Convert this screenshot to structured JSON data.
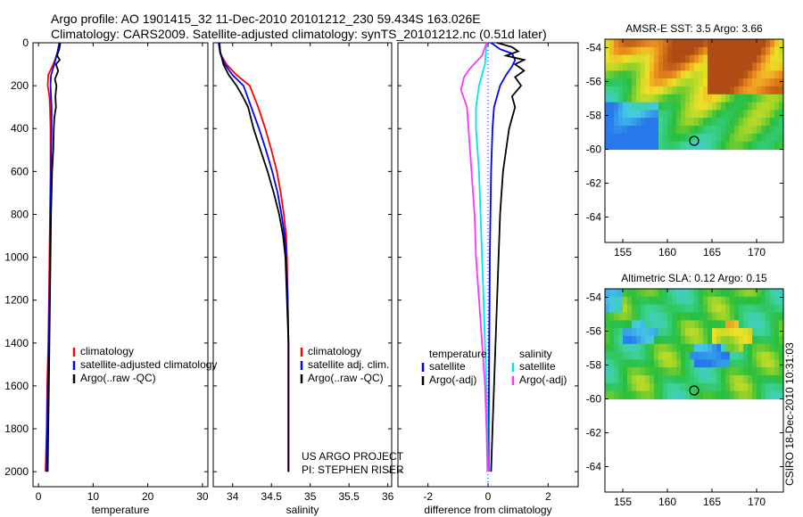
{
  "header": {
    "line1": "Argo profile: AO 1901415_32 11-Dec-2010 20101212_230 59.434S 163.026E",
    "line2": "Climatology: CARS2009. Satellite-adjusted climatology: synTS_20101212.nc (0.51d later)"
  },
  "credit": "CSIRO 18-Dec-2010 10:31:03",
  "project_note": [
    "US ARGO PROJECT",
    "PI: STEPHEN RISER"
  ],
  "colors": {
    "climatology": "#ff0000",
    "satellite": "#0000ff",
    "argo": "#000000",
    "sal_satellite": "#00e5e5",
    "sal_argo": "#ff33ff",
    "zero_line": "#0000ff"
  },
  "chart_data": [
    {
      "type": "line",
      "xlabel": "temperature",
      "ylabel": "",
      "xlim": [
        -1,
        31
      ],
      "ylim": [
        2070,
        0
      ],
      "xticks": [
        0,
        10,
        20,
        30
      ],
      "yticks": [
        0,
        200,
        400,
        600,
        800,
        1000,
        1200,
        1400,
        1600,
        1800,
        2000
      ],
      "legend": [
        "climatology",
        "satellite-adjusted climatology",
        "Argo(..raw -QC)"
      ],
      "legend_position": "bottom-right",
      "series": [
        {
          "name": "climatology",
          "color": "#ff0000",
          "points": [
            [
              3.9,
              0
            ],
            [
              3.6,
              40
            ],
            [
              2.7,
              100
            ],
            [
              1.8,
              150
            ],
            [
              1.7,
              200
            ],
            [
              2.0,
              250
            ],
            [
              2.1,
              300
            ],
            [
              2.2,
              400
            ],
            [
              2.2,
              600
            ],
            [
              2.1,
              800
            ],
            [
              2.0,
              1000
            ],
            [
              1.9,
              1200
            ],
            [
              1.8,
              1400
            ],
            [
              1.6,
              1600
            ],
            [
              1.5,
              1800
            ],
            [
              1.3,
              2000
            ]
          ]
        },
        {
          "name": "satellite-adjusted climatology",
          "color": "#0000ff",
          "points": [
            [
              3.8,
              0
            ],
            [
              3.5,
              40
            ],
            [
              2.9,
              100
            ],
            [
              2.3,
              150
            ],
            [
              2.2,
              200
            ],
            [
              2.3,
              250
            ],
            [
              2.4,
              300
            ],
            [
              2.4,
              400
            ],
            [
              2.3,
              600
            ],
            [
              2.2,
              800
            ],
            [
              2.1,
              1000
            ],
            [
              2.0,
              1200
            ],
            [
              1.9,
              1400
            ],
            [
              1.7,
              1600
            ],
            [
              1.6,
              1800
            ],
            [
              1.4,
              2000
            ]
          ]
        },
        {
          "name": "Argo(..raw -QC)",
          "color": "#000000",
          "points": [
            [
              4.0,
              0
            ],
            [
              3.8,
              30
            ],
            [
              3.4,
              60
            ],
            [
              3.9,
              80
            ],
            [
              3.2,
              100
            ],
            [
              3.6,
              130
            ],
            [
              3.0,
              170
            ],
            [
              3.3,
              200
            ],
            [
              3.1,
              250
            ],
            [
              3.2,
              300
            ],
            [
              2.9,
              350
            ],
            [
              2.8,
              400
            ],
            [
              2.7,
              500
            ],
            [
              2.5,
              600
            ],
            [
              2.4,
              700
            ],
            [
              2.3,
              800
            ],
            [
              2.2,
              1000
            ],
            [
              2.1,
              1200
            ],
            [
              2.0,
              1400
            ],
            [
              1.9,
              1600
            ],
            [
              1.8,
              1800
            ],
            [
              1.7,
              2000
            ]
          ]
        }
      ]
    },
    {
      "type": "line",
      "xlabel": "salinity",
      "ylabel": "",
      "xlim": [
        33.75,
        36.05
      ],
      "ylim": [
        2070,
        0
      ],
      "xticks": [
        34,
        34.5,
        35,
        35.5,
        36
      ],
      "legend": [
        "climatology",
        "satellite adj. clim.",
        "Argo(..raw -QC)"
      ],
      "legend_position": "bottom-right",
      "series": [
        {
          "name": "climatology",
          "color": "#ff0000",
          "points": [
            [
              33.82,
              0
            ],
            [
              33.84,
              50
            ],
            [
              33.92,
              100
            ],
            [
              34.05,
              150
            ],
            [
              34.22,
              200
            ],
            [
              34.33,
              300
            ],
            [
              34.42,
              400
            ],
            [
              34.5,
              500
            ],
            [
              34.57,
              600
            ],
            [
              34.62,
              700
            ],
            [
              34.66,
              800
            ],
            [
              34.69,
              900
            ],
            [
              34.7,
              1000
            ],
            [
              34.71,
              1200
            ],
            [
              34.72,
              1400
            ],
            [
              34.72,
              1600
            ],
            [
              34.72,
              2000
            ]
          ]
        },
        {
          "name": "satellite adj. clim.",
          "color": "#0000ff",
          "points": [
            [
              33.82,
              0
            ],
            [
              33.84,
              50
            ],
            [
              33.9,
              100
            ],
            [
              34.0,
              150
            ],
            [
              34.14,
              200
            ],
            [
              34.24,
              300
            ],
            [
              34.34,
              400
            ],
            [
              34.43,
              500
            ],
            [
              34.51,
              600
            ],
            [
              34.58,
              700
            ],
            [
              34.63,
              800
            ],
            [
              34.67,
              900
            ],
            [
              34.69,
              1000
            ],
            [
              34.71,
              1200
            ],
            [
              34.72,
              1400
            ],
            [
              34.72,
              1600
            ],
            [
              34.72,
              2000
            ]
          ]
        },
        {
          "name": "Argo(..raw -QC)",
          "color": "#000000",
          "points": [
            [
              33.83,
              0
            ],
            [
              33.84,
              40
            ],
            [
              33.88,
              100
            ],
            [
              33.95,
              150
            ],
            [
              34.05,
              200
            ],
            [
              34.13,
              250
            ],
            [
              34.2,
              300
            ],
            [
              34.27,
              400
            ],
            [
              34.36,
              500
            ],
            [
              34.45,
              600
            ],
            [
              34.53,
              700
            ],
            [
              34.6,
              800
            ],
            [
              34.65,
              900
            ],
            [
              34.68,
              1000
            ],
            [
              34.7,
              1200
            ],
            [
              34.72,
              1400
            ],
            [
              34.72,
              1600
            ],
            [
              34.72,
              2000
            ]
          ]
        }
      ]
    },
    {
      "type": "line",
      "xlabel": "difference from climatology",
      "ylabel": "",
      "xlim": [
        -3,
        3
      ],
      "ylim": [
        2070,
        0
      ],
      "xticks": [
        -2,
        0,
        2
      ],
      "legend_left_title": "temperature",
      "legend_right_title": "salinity",
      "legend_left": [
        "satellite",
        "Argo(-adj)"
      ],
      "legend_right": [
        "satellite",
        "Argo(-adj)"
      ],
      "legend_position": "bottom",
      "series": [
        {
          "name": "satellite",
          "color": "#0000ff",
          "points": [
            [
              0.1,
              0
            ],
            [
              0.4,
              30
            ],
            [
              0.8,
              50
            ],
            [
              0.9,
              80
            ],
            [
              0.8,
              110
            ],
            [
              0.6,
              150
            ],
            [
              0.4,
              200
            ],
            [
              0.3,
              250
            ],
            [
              0.2,
              300
            ],
            [
              0.15,
              400
            ],
            [
              0.1,
              600
            ],
            [
              0.08,
              800
            ],
            [
              0.06,
              1000
            ],
            [
              0.05,
              1200
            ],
            [
              0.04,
              1400
            ],
            [
              0.03,
              1600
            ],
            [
              0.02,
              1800
            ],
            [
              0.02,
              2000
            ]
          ]
        },
        {
          "name": "Argo(-adj)",
          "color": "#000000",
          "points": [
            [
              0.3,
              0
            ],
            [
              0.8,
              20
            ],
            [
              1.0,
              40
            ],
            [
              0.6,
              60
            ],
            [
              1.2,
              80
            ],
            [
              0.9,
              100
            ],
            [
              1.2,
              130
            ],
            [
              0.9,
              160
            ],
            [
              1.1,
              200
            ],
            [
              0.8,
              250
            ],
            [
              0.9,
              300
            ],
            [
              0.7,
              400
            ],
            [
              0.6,
              500
            ],
            [
              0.5,
              600
            ],
            [
              0.45,
              700
            ],
            [
              0.4,
              800
            ],
            [
              0.35,
              1000
            ],
            [
              0.3,
              1200
            ],
            [
              0.25,
              1400
            ],
            [
              0.2,
              1600
            ],
            [
              0.15,
              1800
            ],
            [
              0.1,
              2000
            ]
          ]
        },
        {
          "name": "salinity satellite",
          "color": "#00e5e5",
          "points": [
            [
              -0.05,
              0
            ],
            [
              -0.1,
              100
            ],
            [
              -0.3,
              200
            ],
            [
              -0.4,
              300
            ],
            [
              -0.4,
              400
            ],
            [
              -0.35,
              500
            ],
            [
              -0.3,
              600
            ],
            [
              -0.25,
              800
            ],
            [
              -0.2,
              1000
            ],
            [
              -0.15,
              1200
            ],
            [
              -0.1,
              1400
            ],
            [
              -0.05,
              1600
            ],
            [
              -0.02,
              1800
            ],
            [
              0.0,
              2000
            ]
          ]
        },
        {
          "name": "salinity Argo(-adj)",
          "color": "#ff33ff",
          "points": [
            [
              -0.05,
              0
            ],
            [
              -0.2,
              60
            ],
            [
              -0.6,
              120
            ],
            [
              -0.8,
              160
            ],
            [
              -0.9,
              220
            ],
            [
              -0.7,
              300
            ],
            [
              -0.65,
              400
            ],
            [
              -0.6,
              500
            ],
            [
              -0.55,
              600
            ],
            [
              -0.5,
              700
            ],
            [
              -0.45,
              800
            ],
            [
              -0.4,
              1000
            ],
            [
              -0.3,
              1200
            ],
            [
              -0.2,
              1400
            ],
            [
              -0.1,
              1600
            ],
            [
              -0.05,
              1800
            ],
            [
              -0.02,
              2000
            ]
          ]
        }
      ]
    },
    {
      "type": "heatmap",
      "title": "AMSR-E SST: 3.5 Argo: 3.66",
      "xlim": [
        153,
        173
      ],
      "ylim": [
        -65.5,
        -53.5
      ],
      "xticks": [
        155,
        160,
        165,
        170
      ],
      "yticks": [
        -54,
        -56,
        -58,
        -60,
        -62,
        -64
      ],
      "marker": {
        "lon": 163,
        "lat": -59.5
      },
      "data_extent_lat": [
        -53.5,
        -60
      ]
    },
    {
      "type": "heatmap",
      "title": "Altimetric SLA: 0.12 Argo: 0.15",
      "xlim": [
        153,
        173
      ],
      "ylim": [
        -65.5,
        -53.5
      ],
      "xticks": [
        155,
        160,
        165,
        170
      ],
      "yticks": [
        -54,
        -56,
        -58,
        -60,
        -62,
        -64
      ],
      "marker": {
        "lon": 163,
        "lat": -59.5
      },
      "data_extent_lat": [
        -53.5,
        -60
      ]
    }
  ]
}
